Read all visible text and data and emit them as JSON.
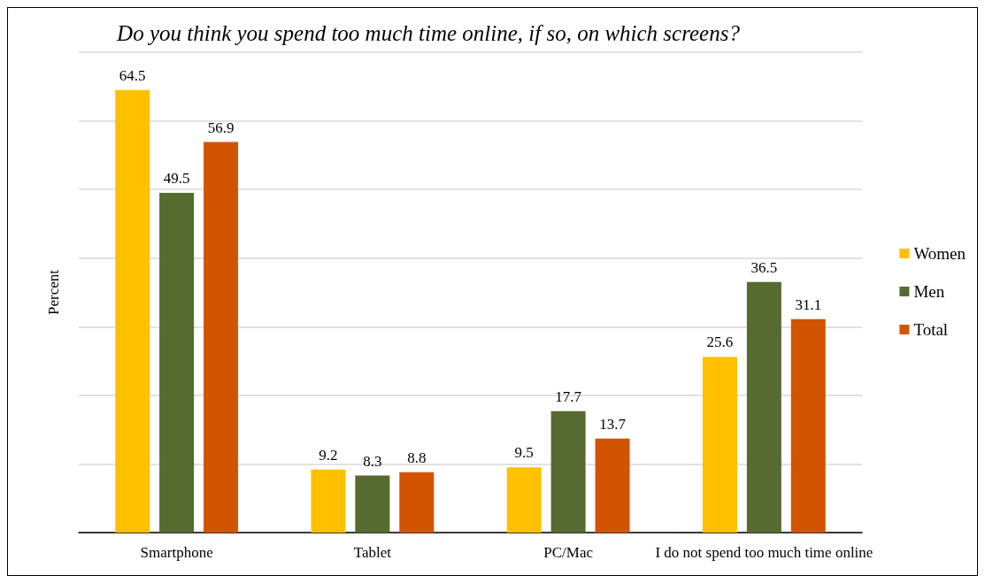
{
  "chart_data": {
    "type": "bar",
    "title": "Do you think you spend too much time online, if so, on which screens?",
    "ylabel": "Percent",
    "categories": [
      "Smartphone",
      "Tablet",
      "PC/Mac",
      "I do not spend too much time online"
    ],
    "series": [
      {
        "name": "Women",
        "color": "#ffc000",
        "values": [
          64.5,
          9.2,
          9.5,
          25.6
        ]
      },
      {
        "name": "Men",
        "color": "#556b2f",
        "values": [
          49.5,
          8.3,
          17.7,
          36.5
        ]
      },
      {
        "name": "Total",
        "color": "#d35400",
        "values": [
          56.9,
          8.8,
          13.7,
          31.1
        ]
      }
    ],
    "ylim": [
      0,
      70
    ],
    "yticks": [
      {
        "value": 0,
        "label": null
      },
      {
        "value": 10,
        "label": null
      },
      {
        "value": 20,
        "label": null
      },
      {
        "value": 30,
        "label": null
      },
      {
        "value": 40,
        "label": null
      },
      {
        "value": 50,
        "label": null
      },
      {
        "value": 60,
        "label": null
      },
      {
        "value": 70,
        "label": null
      }
    ],
    "tick_labels": "x",
    "grid": "y",
    "legend": "right",
    "data_labels": true
  }
}
